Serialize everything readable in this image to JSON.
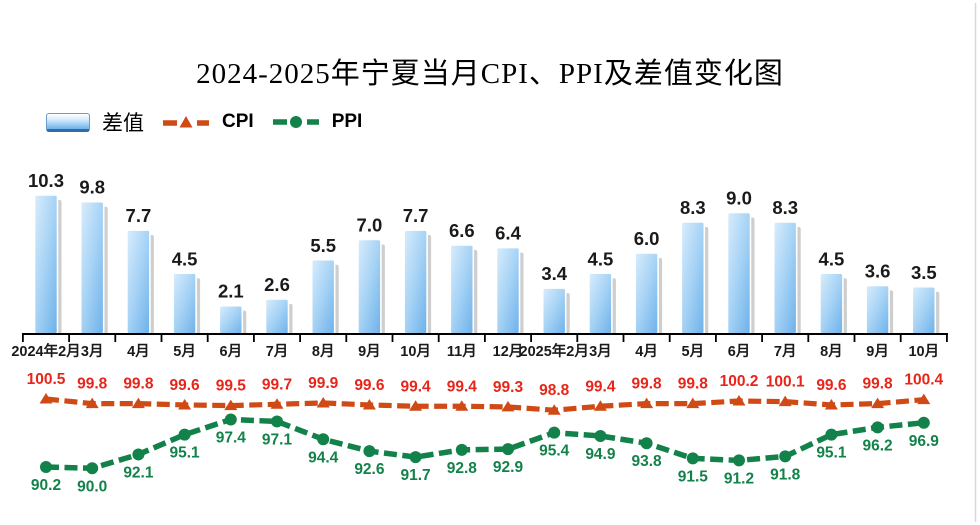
{
  "title": "2024-2025年宁夏当月CPI、PPI及差值变化图",
  "legend": {
    "diff_label": "差值",
    "cpi_label": "CPI",
    "ppi_label": "PPI"
  },
  "colors": {
    "bar_light": "#d9edfc",
    "bar_mid": "#a5d2f5",
    "bar_dark": "#6cb0ea",
    "bar_shadow": "#a6a6a6",
    "cpi_line": "#cf4a14",
    "cpi_label": "#e8251a",
    "ppi_line": "#12824a",
    "axis": "#000000",
    "text": "#1a1a1a",
    "right_border": "#cfdbe7"
  },
  "chart_data": {
    "type": "combo",
    "categories": [
      "2024年2月",
      "3月",
      "4月",
      "5月",
      "6月",
      "7月",
      "8月",
      "9月",
      "10月",
      "11月",
      "12月",
      "2025年2月",
      "3月",
      "4月",
      "5月",
      "6月",
      "7月",
      "8月",
      "9月",
      "10月"
    ],
    "series": [
      {
        "name": "差值",
        "type": "bar",
        "values": [
          10.3,
          9.8,
          7.7,
          4.5,
          2.1,
          2.6,
          5.5,
          7.0,
          7.7,
          6.6,
          6.4,
          3.4,
          4.5,
          6.0,
          8.3,
          9.0,
          8.3,
          4.5,
          3.6,
          3.5
        ],
        "display_labels": [
          "10.3",
          "9.8",
          "7.7",
          "4.5",
          "2.1",
          "2.6",
          "5.5",
          "7.0",
          "7.7",
          "6.6",
          "6.4",
          "3.4",
          "4.5",
          "6.0",
          "8.3",
          "9.0",
          "8.3",
          "4.5",
          "3.6",
          "3.5"
        ]
      },
      {
        "name": "CPI",
        "type": "line",
        "marker": "triangle",
        "values": [
          100.5,
          99.8,
          99.8,
          99.6,
          99.5,
          99.7,
          99.9,
          99.6,
          99.4,
          99.4,
          99.3,
          98.8,
          99.4,
          99.8,
          99.8,
          100.2,
          100.1,
          99.6,
          99.8,
          100.4
        ],
        "display_labels": [
          "100.5",
          "99.8",
          "99.8",
          "99.6",
          "99.5",
          "99.7",
          "99.9",
          "99.6",
          "99.4",
          "99.4",
          "99.3",
          "98.8",
          "99.4",
          "99.8",
          "99.8",
          "100.2",
          "100.1",
          "99.6",
          "99.8",
          "100.4"
        ]
      },
      {
        "name": "PPI",
        "type": "line",
        "marker": "circle",
        "values": [
          90.2,
          90.0,
          92.1,
          95.1,
          97.4,
          97.1,
          94.4,
          92.6,
          91.7,
          92.8,
          92.9,
          95.4,
          94.9,
          93.8,
          91.5,
          91.2,
          91.8,
          95.1,
          96.2,
          96.9
        ],
        "display_labels": [
          "90.2",
          "90.0",
          "92.1",
          "95.1",
          "97.4",
          "97.1",
          "94.4",
          "92.6",
          "91.7",
          "92.8",
          "92.9",
          "95.4",
          "94.9",
          "93.8",
          "91.5",
          "91.2",
          "91.8",
          "95.1",
          "96.2",
          "96.9"
        ]
      }
    ],
    "bar_axis": {
      "min": 0,
      "visible": false
    },
    "line_axis": {
      "approx_range": [
        88,
        102
      ],
      "visible": false
    },
    "grid": false,
    "legend_position": "top-left",
    "data_labels": true
  }
}
